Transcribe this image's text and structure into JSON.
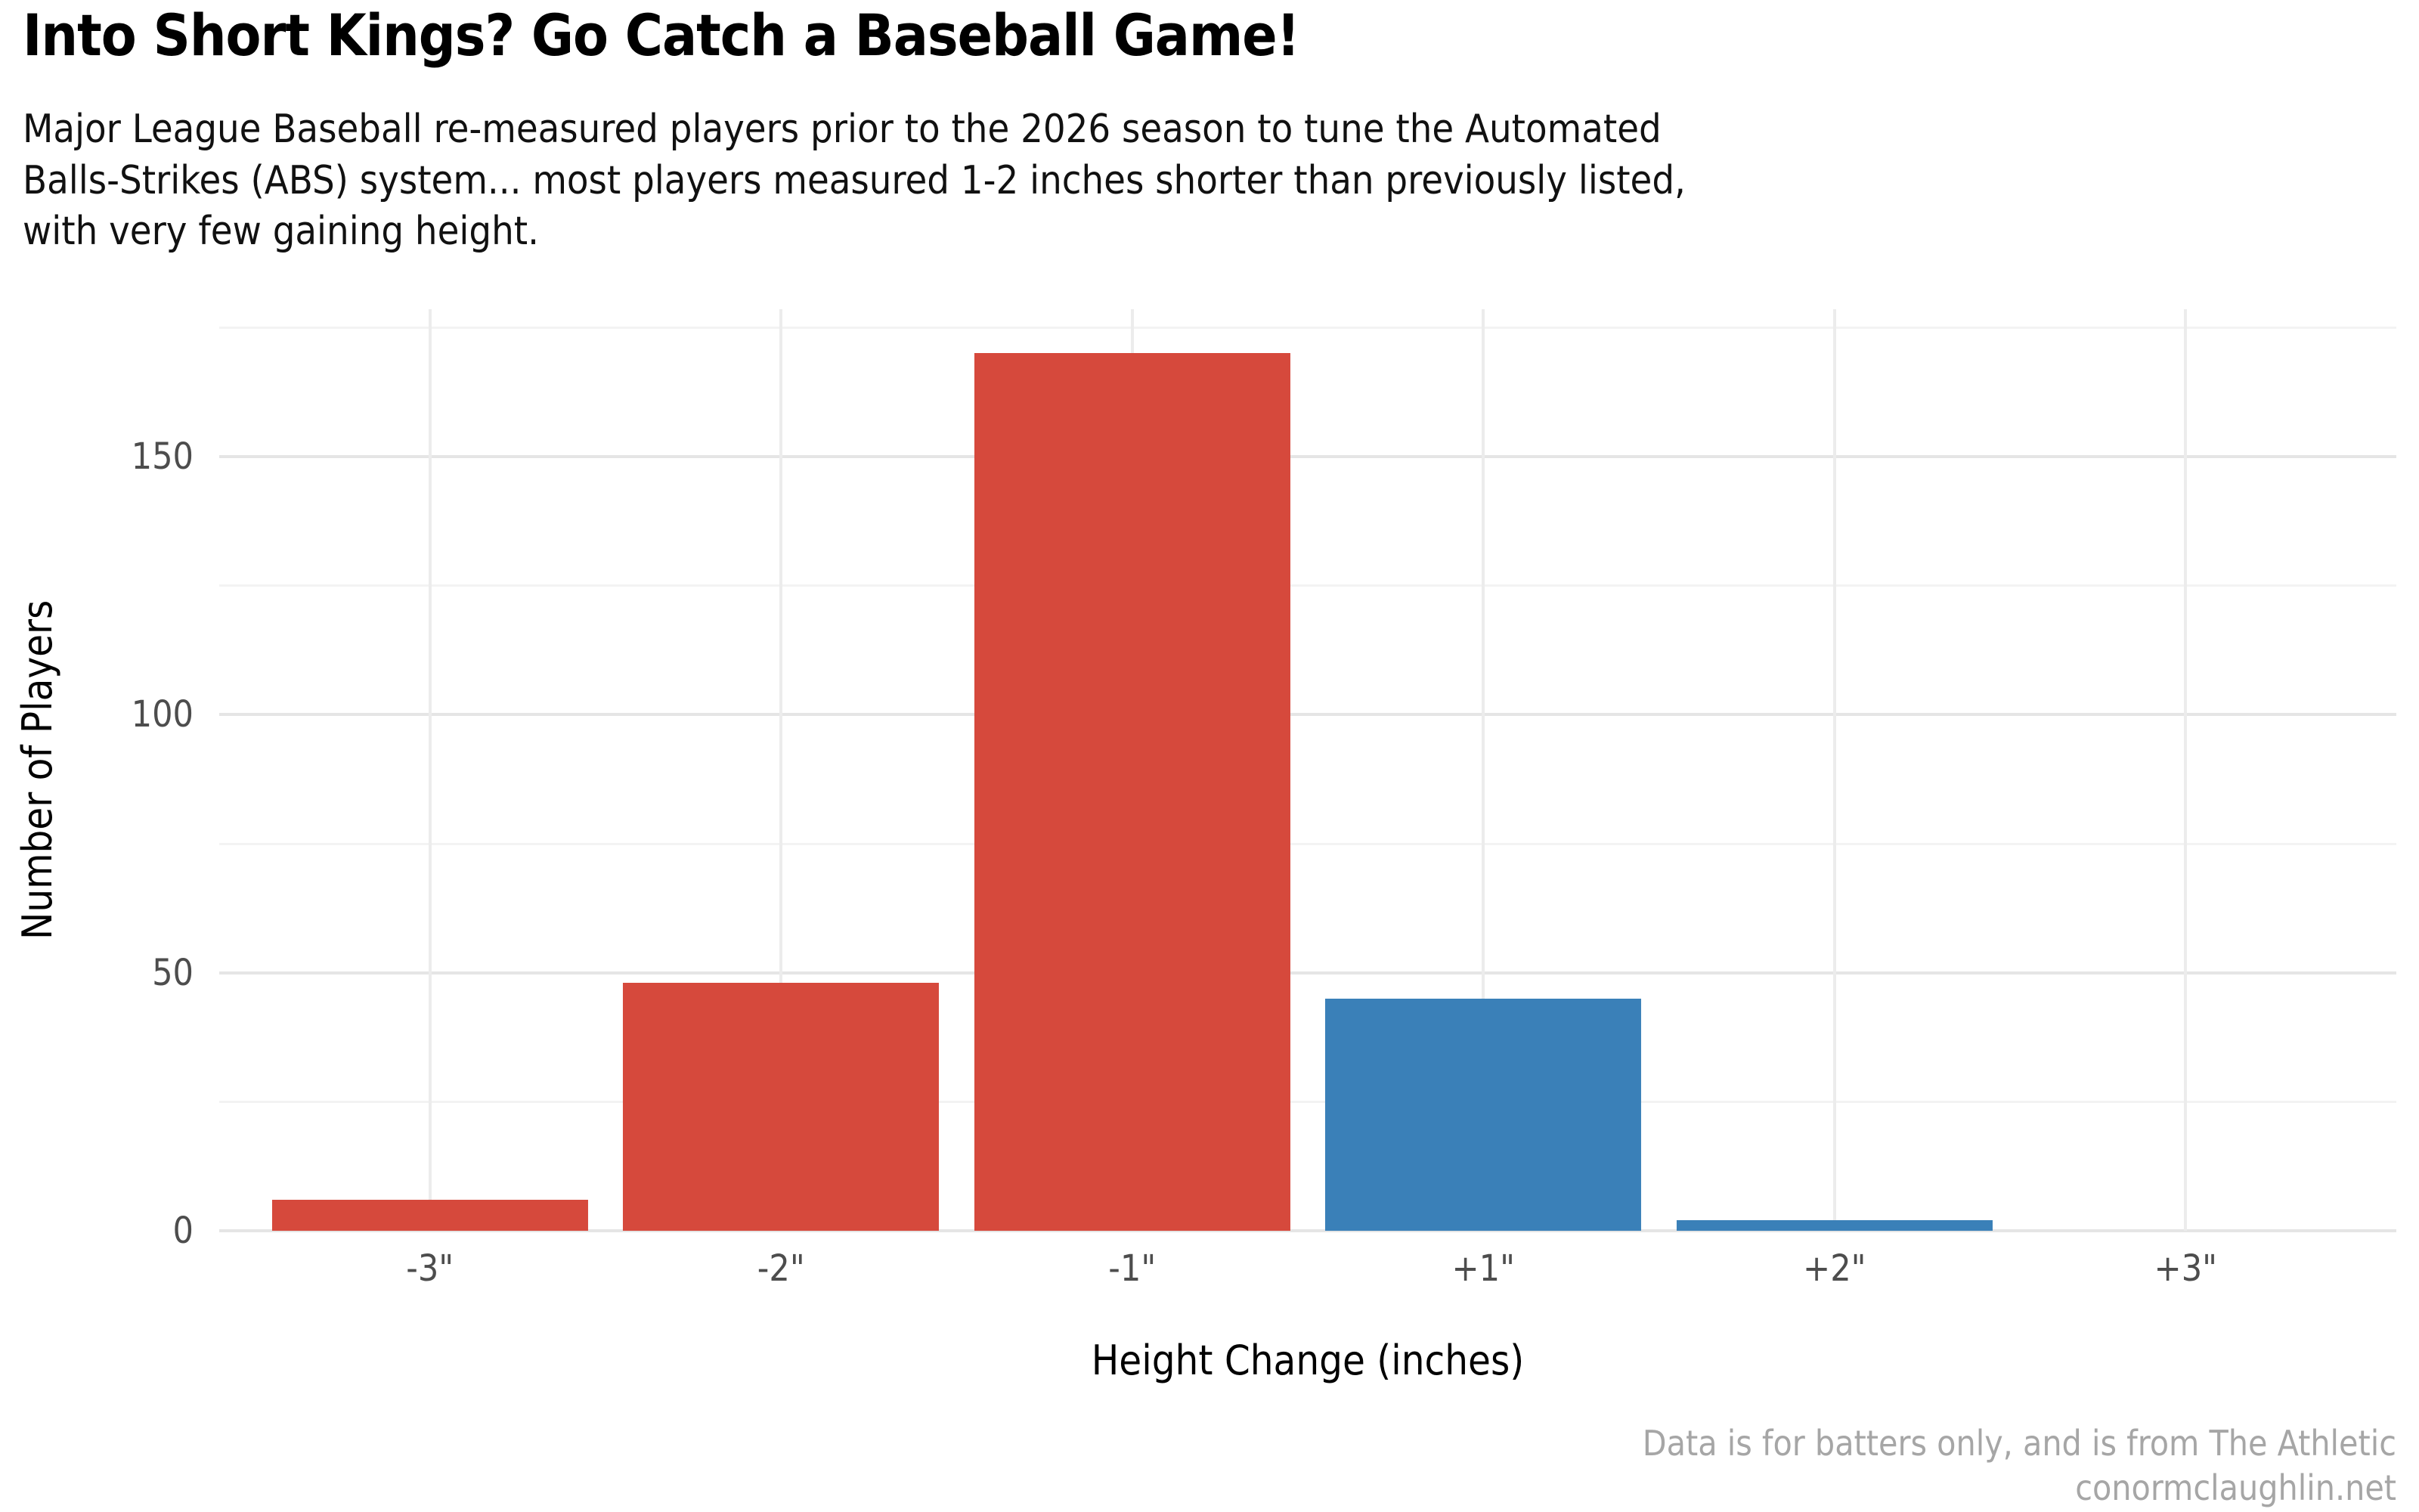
{
  "figure": {
    "title": "Into Short Kings? Go Catch a Baseball Game!",
    "subtitle_lines": [
      "Major League Baseball re-measured players prior to the 2026 season to tune the Automated",
      "Balls-Strikes (ABS) system... most players measured 1-2 inches shorter than previously listed,",
      "with very few gaining height."
    ],
    "caption_line1": "Data is for batters only, and is from The Athletic",
    "caption_line2": "conormclaughlin.net"
  },
  "chart_data": {
    "type": "bar",
    "title": "Into Short Kings? Go Catch a Baseball Game!",
    "subtitle": "Major League Baseball re-measured players prior to the 2026 season to tune the Automated Balls-Strikes (ABS) system... most players measured 1-2 inches shorter than previously listed, with very few gaining height.",
    "categories": [
      "-3\"",
      "-2\"",
      "-1\"",
      "+1\"",
      "+2\"",
      "+3\""
    ],
    "values": [
      6,
      48,
      170,
      45,
      2,
      0
    ],
    "bar_colors": [
      "#d6493c",
      "#d6493c",
      "#d6493c",
      "#3a80b8",
      "#3a80b8",
      "#3a80b8"
    ],
    "xlabel": "Height Change (inches)",
    "ylabel": "Number of Players",
    "ylim": [
      0,
      178.5
    ],
    "yticks": [
      0,
      50,
      100,
      150
    ],
    "y_minor_gridlines": [
      25,
      75,
      125,
      175
    ],
    "grid": "on",
    "legend": "none",
    "colors": {
      "negative_change": "#d6493c",
      "positive_change": "#3a80b8",
      "tick_label": "#4d4d4d",
      "caption": "#a6a6a6"
    },
    "caption": "Data is for batters only, and is from The Athletic conormclaughlin.net"
  }
}
